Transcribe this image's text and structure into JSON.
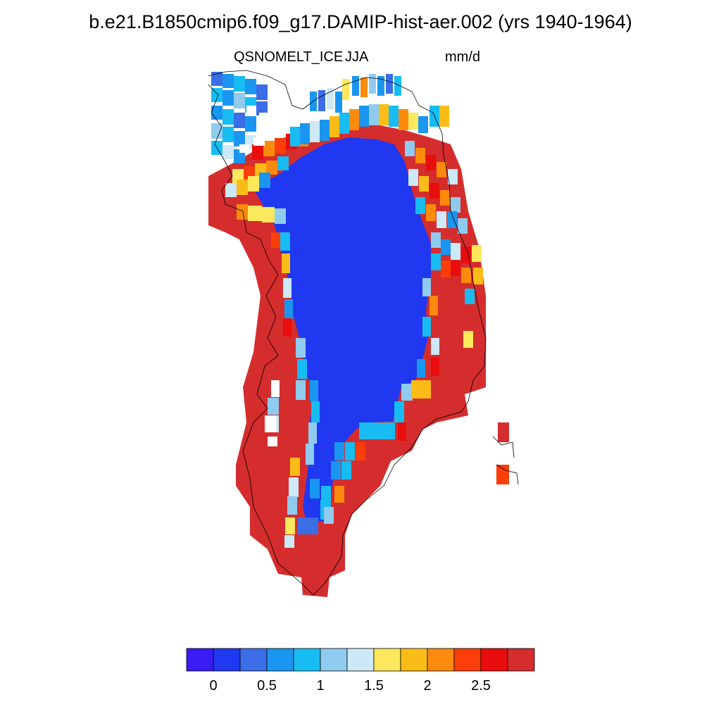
{
  "figure": {
    "title": "b.e21.B1850cmip6.f09_g17.DAMIP-hist-aer.002 (yrs 1940-1964)",
    "variable": "QSNOMELT_ICE",
    "season": "JJA",
    "units": "mm/d"
  },
  "colorbar": {
    "colors": [
      "#3a1cf5",
      "#1f38f0",
      "#3a6de6",
      "#1a96f0",
      "#17bcf2",
      "#8fcbee",
      "#cde8f7",
      "#fce85c",
      "#fcbc17",
      "#fb8a0d",
      "#fb3e0a",
      "#e90d0d",
      "#d52d2d"
    ],
    "tick_labels": [
      "0",
      "0.5",
      "1",
      "1.5",
      "2",
      "2.5"
    ]
  },
  "map_legend": {
    "blue-ice-interior": "low melt (~0-0.3 mm/d)",
    "red-margin": "high melt (> 2.9 mm/d)",
    "coastline": "black outline"
  }
}
